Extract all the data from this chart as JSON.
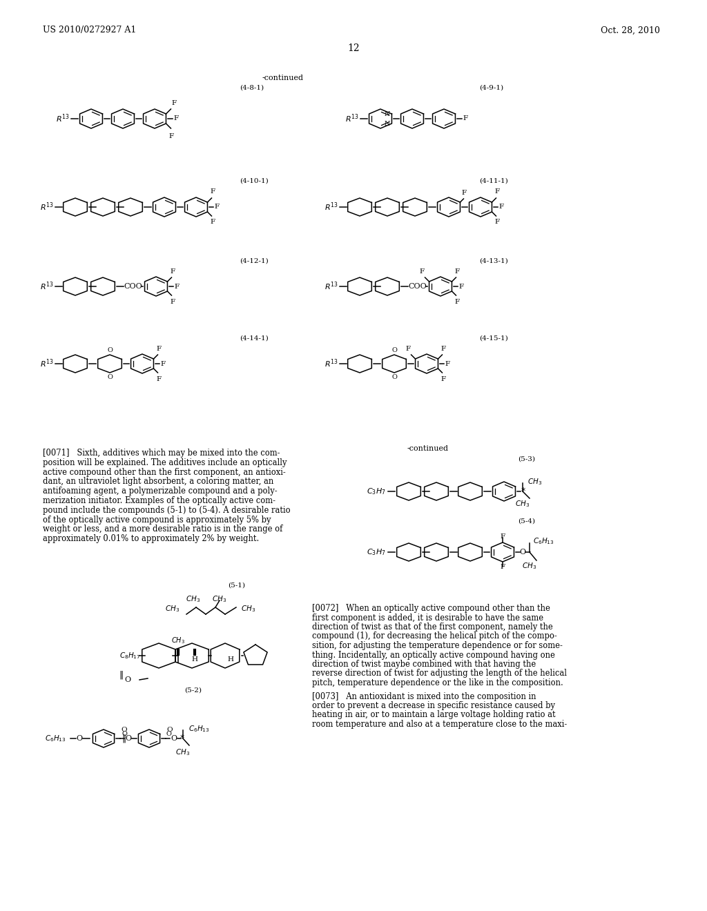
{
  "page_number": "12",
  "patent_number": "US 2010/0272927 A1",
  "patent_date": "Oct. 28, 2010",
  "background_color": "#ffffff",
  "text_color": "#000000",
  "paragraph_0071": "[0071]   Sixth, additives which may be mixed into the com-\nposition will be explained. The additives include an optically\nactive compound other than the first component, an antioxi-\ndant, an ultraviolet light absorbent, a coloring matter, an\nantifoaming agent, a polymerizable compound and a poly-\nmerization initiator. Examples of the optically active com-\npound include the compounds (5-1) to (5-4). A desirable ratio\nof the optically active compound is approximately 5% by\nweight or less, and a more desirable ratio is in the range of\napproximately 0.01% to approximately 2% by weight.",
  "paragraph_0072": "[0072]   When an optically active compound other than the\nfirst component is added, it is desirable to have the same\ndirection of twist as that of the first component, namely the\ncompound (1), for decreasing the helical pitch of the compo-\nsition, for adjusting the temperature dependence or for some-\nthing. Incidentally, an optically active compound having one\ndirection of twist maybe combined with that having the\nreverse direction of twist for adjusting the length of the helical\npitch, temperature dependence or the like in the composition.",
  "paragraph_0073": "[0073]   An antioxidant is mixed into the composition in\norder to prevent a decrease in specific resistance caused by\nheating in air, or to maintain a large voltage holding ratio at\nroom temperature and also at a temperature close to the maxi-"
}
